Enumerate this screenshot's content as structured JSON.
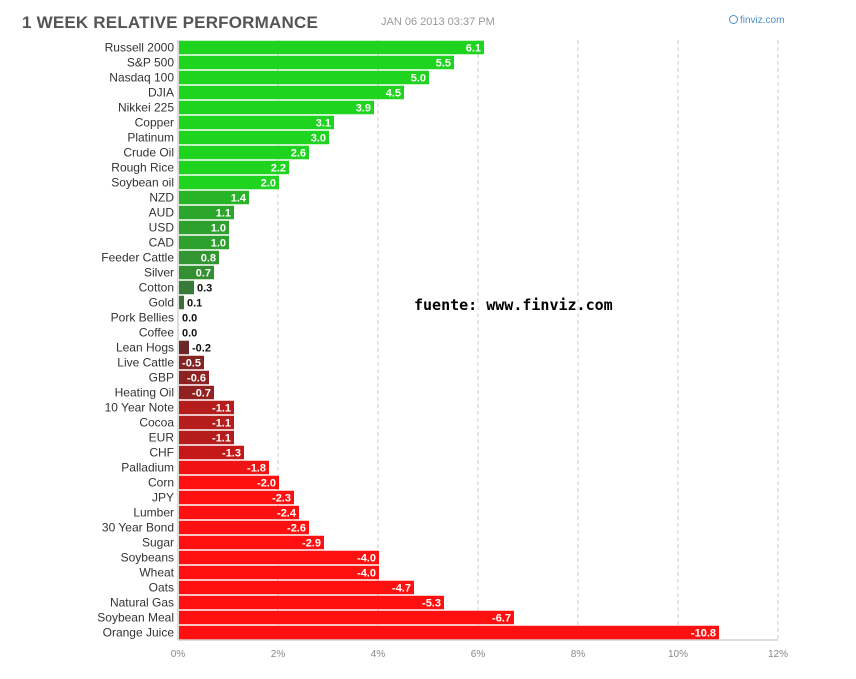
{
  "header": {
    "title": "1 WEEK RELATIVE PERFORMANCE",
    "timestamp": "JAN 06 2013 03:37 PM",
    "brand": "finviz.com",
    "brand_icon": "finviz-logo-icon"
  },
  "annotation": "fuente: www.finviz.com",
  "chart_data": {
    "type": "bar",
    "orientation": "horizontal",
    "title": "1 WEEK RELATIVE PERFORMANCE",
    "xlabel": "",
    "ylabel": "",
    "xlim": [
      0,
      12
    ],
    "x_tick_values": [
      0,
      2,
      4,
      6,
      8,
      10,
      12
    ],
    "x_tick_labels": [
      "0%",
      "2%",
      "4%",
      "6%",
      "8%",
      "10%",
      "12%"
    ],
    "grid": true,
    "bar_length": "absolute value",
    "colors": {
      "positive_strong": "#1ed41e",
      "positive_weak": "#3d6b3d",
      "negative_weak": "#5a2a2a",
      "negative_strong": "#ff1010"
    },
    "categories": [
      "Russell 2000",
      "S&P 500",
      "Nasdaq 100",
      "DJIA",
      "Nikkei 225",
      "Copper",
      "Platinum",
      "Crude Oil",
      "Rough Rice",
      "Soybean oil",
      "NZD",
      "AUD",
      "USD",
      "CAD",
      "Feeder Cattle",
      "Silver",
      "Cotton",
      "Gold",
      "Pork Bellies",
      "Coffee",
      "Lean Hogs",
      "Live Cattle",
      "GBP",
      "Heating Oil",
      "10 Year Note",
      "Cocoa",
      "EUR",
      "CHF",
      "Palladium",
      "Corn",
      "JPY",
      "Lumber",
      "30 Year Bond",
      "Sugar",
      "Soybeans",
      "Wheat",
      "Oats",
      "Natural Gas",
      "Soybean Meal",
      "Orange Juice"
    ],
    "values": [
      6.1,
      5.5,
      5.0,
      4.5,
      3.9,
      3.1,
      3.0,
      2.6,
      2.2,
      2.0,
      1.4,
      1.1,
      1.0,
      1.0,
      0.8,
      0.7,
      0.3,
      0.1,
      0.0,
      0.0,
      -0.2,
      -0.5,
      -0.6,
      -0.7,
      -1.1,
      -1.1,
      -1.1,
      -1.3,
      -1.8,
      -2.0,
      -2.3,
      -2.4,
      -2.6,
      -2.9,
      -4.0,
      -4.0,
      -4.7,
      -5.3,
      -6.7,
      -10.8
    ],
    "value_labels": [
      "6.1",
      "5.5",
      "5.0",
      "4.5",
      "3.9",
      "3.1",
      "3.0",
      "2.6",
      "2.2",
      "2.0",
      "1.4",
      "1.1",
      "1.0",
      "1.0",
      "0.8",
      "0.7",
      "0.3",
      "0.1",
      "0.0",
      "0.0",
      "-0.2",
      "-0.5",
      "-0.6",
      "-0.7",
      "-1.1",
      "-1.1",
      "-1.1",
      "-1.3",
      "-1.8",
      "-2.0",
      "-2.3",
      "-2.4",
      "-2.6",
      "-2.9",
      "-4.0",
      "-4.0",
      "-4.7",
      "-5.3",
      "-6.7",
      "-10.8"
    ]
  }
}
